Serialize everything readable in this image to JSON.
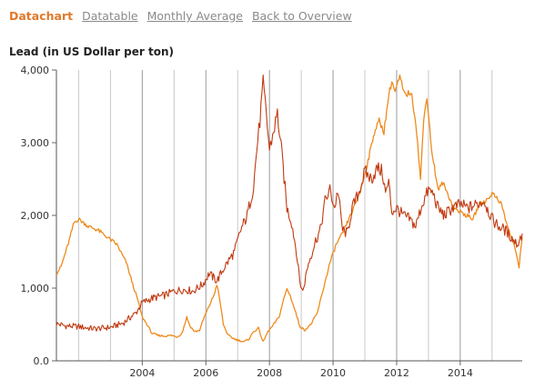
{
  "tabs": [
    {
      "label": "Datachart",
      "active": true
    },
    {
      "label": "Datatable",
      "active": false
    },
    {
      "label": "Monthly Average",
      "active": false
    },
    {
      "label": "Back to Overview",
      "active": false
    }
  ],
  "colors": {
    "accent": "#e0792a",
    "link": "#8a8a8a",
    "grid": "#c8c8c8",
    "series_lead": "#c0390f",
    "series_orange": "#ef8a1c"
  },
  "chart_data": {
    "type": "line",
    "title": "Lead (in US Dollar per ton)",
    "xlabel": "",
    "ylabel": "",
    "xlim": [
      2001.3,
      2015.95
    ],
    "ylim": [
      0,
      4000
    ],
    "grid": true,
    "legend": "none",
    "y_ticks": [
      {
        "value": 0,
        "label": "0.0"
      },
      {
        "value": 1000,
        "label": "1,000"
      },
      {
        "value": 2000,
        "label": "2,000"
      },
      {
        "value": 3000,
        "label": "3,000"
      },
      {
        "value": 4000,
        "label": "4,000"
      }
    ],
    "x_ticks": [
      {
        "value": 2004,
        "label": "2004"
      },
      {
        "value": 2006,
        "label": "2006"
      },
      {
        "value": 2008,
        "label": "2008"
      },
      {
        "value": 2010,
        "label": "2010"
      },
      {
        "value": 2012,
        "label": "2012"
      },
      {
        "value": 2014,
        "label": "2014"
      }
    ],
    "x_minor_ticks": [
      2002,
      2003,
      2005,
      2007,
      2009,
      2011,
      2013,
      2015
    ],
    "series": [
      {
        "color": "#c0390f",
        "points": [
          [
            2001.3,
            510
          ],
          [
            2001.6,
            480
          ],
          [
            2002.0,
            470
          ],
          [
            2002.5,
            440
          ],
          [
            2003.0,
            460
          ],
          [
            2003.4,
            520
          ],
          [
            2003.8,
            660
          ],
          [
            2004.0,
            800
          ],
          [
            2004.3,
            860
          ],
          [
            2004.7,
            900
          ],
          [
            2005.0,
            960
          ],
          [
            2005.3,
            980
          ],
          [
            2005.6,
            960
          ],
          [
            2005.9,
            1050
          ],
          [
            2006.1,
            1200
          ],
          [
            2006.35,
            1100
          ],
          [
            2006.6,
            1300
          ],
          [
            2006.9,
            1500
          ],
          [
            2007.1,
            1800
          ],
          [
            2007.3,
            2000
          ],
          [
            2007.5,
            2400
          ],
          [
            2007.6,
            2900
          ],
          [
            2007.7,
            3300
          ],
          [
            2007.8,
            3800
          ],
          [
            2007.9,
            3400
          ],
          [
            2008.0,
            2900
          ],
          [
            2008.1,
            3100
          ],
          [
            2008.25,
            3400
          ],
          [
            2008.4,
            2800
          ],
          [
            2008.55,
            2100
          ],
          [
            2008.7,
            1900
          ],
          [
            2008.85,
            1500
          ],
          [
            2008.95,
            1100
          ],
          [
            2009.05,
            950
          ],
          [
            2009.2,
            1300
          ],
          [
            2009.45,
            1650
          ],
          [
            2009.6,
            1800
          ],
          [
            2009.75,
            2200
          ],
          [
            2009.9,
            2350
          ],
          [
            2010.05,
            2100
          ],
          [
            2010.15,
            2350
          ],
          [
            2010.3,
            1800
          ],
          [
            2010.45,
            1750
          ],
          [
            2010.6,
            2100
          ],
          [
            2010.8,
            2300
          ],
          [
            2011.0,
            2600
          ],
          [
            2011.2,
            2500
          ],
          [
            2011.4,
            2650
          ],
          [
            2011.55,
            2600
          ],
          [
            2011.65,
            2300
          ],
          [
            2011.75,
            2450
          ],
          [
            2011.85,
            2050
          ],
          [
            2012.0,
            2100
          ],
          [
            2012.2,
            2000
          ],
          [
            2012.4,
            1950
          ],
          [
            2012.6,
            1850
          ],
          [
            2012.8,
            2150
          ],
          [
            2013.0,
            2350
          ],
          [
            2013.15,
            2300
          ],
          [
            2013.3,
            2100
          ],
          [
            2013.5,
            2000
          ],
          [
            2013.75,
            2100
          ],
          [
            2014.0,
            2150
          ],
          [
            2014.25,
            2100
          ],
          [
            2014.5,
            2150
          ],
          [
            2014.75,
            2200
          ],
          [
            2015.0,
            1950
          ],
          [
            2015.2,
            1850
          ],
          [
            2015.4,
            1800
          ],
          [
            2015.6,
            1700
          ],
          [
            2015.8,
            1600
          ],
          [
            2015.95,
            1750
          ]
        ]
      },
      {
        "color": "#ef8a1c",
        "points": [
          [
            2001.3,
            1200
          ],
          [
            2001.45,
            1300
          ],
          [
            2001.7,
            1650
          ],
          [
            2001.85,
            1900
          ],
          [
            2002.0,
            1950
          ],
          [
            2002.3,
            1850
          ],
          [
            2002.6,
            1800
          ],
          [
            2002.9,
            1700
          ],
          [
            2003.2,
            1600
          ],
          [
            2003.5,
            1350
          ],
          [
            2003.7,
            1050
          ],
          [
            2003.85,
            850
          ],
          [
            2004.0,
            600
          ],
          [
            2004.15,
            500
          ],
          [
            2004.3,
            380
          ],
          [
            2004.5,
            350
          ],
          [
            2004.7,
            340
          ],
          [
            2004.9,
            350
          ],
          [
            2005.1,
            330
          ],
          [
            2005.25,
            380
          ],
          [
            2005.4,
            600
          ],
          [
            2005.5,
            480
          ],
          [
            2005.65,
            400
          ],
          [
            2005.8,
            420
          ],
          [
            2005.95,
            600
          ],
          [
            2006.1,
            750
          ],
          [
            2006.25,
            900
          ],
          [
            2006.35,
            1050
          ],
          [
            2006.45,
            800
          ],
          [
            2006.55,
            500
          ],
          [
            2006.7,
            350
          ],
          [
            2006.9,
            300
          ],
          [
            2007.05,
            280
          ],
          [
            2007.2,
            260
          ],
          [
            2007.35,
            300
          ],
          [
            2007.5,
            400
          ],
          [
            2007.65,
            450
          ],
          [
            2007.8,
            260
          ],
          [
            2007.95,
            400
          ],
          [
            2008.1,
            480
          ],
          [
            2008.3,
            600
          ],
          [
            2008.45,
            850
          ],
          [
            2008.55,
            990
          ],
          [
            2008.65,
            900
          ],
          [
            2008.8,
            700
          ],
          [
            2008.95,
            480
          ],
          [
            2009.1,
            420
          ],
          [
            2009.3,
            500
          ],
          [
            2009.5,
            650
          ],
          [
            2009.7,
            1000
          ],
          [
            2009.9,
            1350
          ],
          [
            2010.1,
            1600
          ],
          [
            2010.3,
            1750
          ],
          [
            2010.5,
            1950
          ],
          [
            2010.7,
            2150
          ],
          [
            2010.9,
            2400
          ],
          [
            2011.1,
            2750
          ],
          [
            2011.3,
            3150
          ],
          [
            2011.45,
            3300
          ],
          [
            2011.6,
            3150
          ],
          [
            2011.75,
            3650
          ],
          [
            2011.85,
            3850
          ],
          [
            2011.95,
            3700
          ],
          [
            2012.1,
            3900
          ],
          [
            2012.25,
            3650
          ],
          [
            2012.45,
            3700
          ],
          [
            2012.6,
            3300
          ],
          [
            2012.75,
            2500
          ],
          [
            2012.85,
            3300
          ],
          [
            2012.95,
            3650
          ],
          [
            2013.1,
            2900
          ],
          [
            2013.3,
            2350
          ],
          [
            2013.45,
            2450
          ],
          [
            2013.6,
            2300
          ],
          [
            2013.8,
            2100
          ],
          [
            2014.0,
            2050
          ],
          [
            2014.2,
            2000
          ],
          [
            2014.4,
            1950
          ],
          [
            2014.6,
            2150
          ],
          [
            2014.8,
            2200
          ],
          [
            2015.0,
            2300
          ],
          [
            2015.15,
            2250
          ],
          [
            2015.3,
            2150
          ],
          [
            2015.45,
            1900
          ],
          [
            2015.6,
            1700
          ],
          [
            2015.75,
            1500
          ],
          [
            2015.85,
            1300
          ],
          [
            2015.95,
            1700
          ]
        ]
      }
    ]
  }
}
